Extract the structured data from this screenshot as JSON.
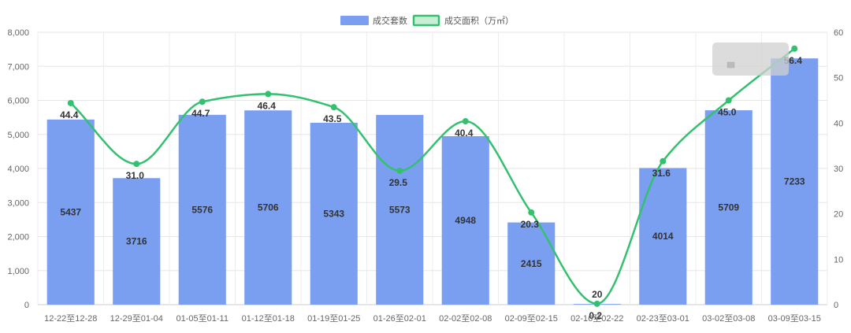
{
  "chart_data": {
    "type": "bar",
    "categories": [
      "12-22至12-28",
      "12-29至01-04",
      "01-05至01-11",
      "01-12至01-18",
      "01-19至01-25",
      "01-26至02-01",
      "02-02至02-08",
      "02-09至02-15",
      "02-16至02-22",
      "02-23至03-01",
      "03-02至03-08",
      "03-09至03-15"
    ],
    "series": [
      {
        "name": "成交套数",
        "type": "bar",
        "axis": "left",
        "color": "#7a9ff0",
        "values": [
          5437,
          3716,
          5576,
          5706,
          5343,
          5573,
          4948,
          2415,
          20,
          4014,
          5709,
          7233
        ],
        "labels": [
          "5437",
          "3716",
          "5576",
          "5706",
          "5343",
          "5573",
          "4948",
          "2415",
          "20",
          "4014",
          "5709",
          "7233"
        ]
      },
      {
        "name": "成交面积（万㎡）",
        "type": "line",
        "axis": "right",
        "color": "#33c16f",
        "values": [
          44.4,
          31.0,
          44.7,
          46.4,
          43.5,
          29.5,
          40.4,
          20.3,
          0.2,
          31.6,
          45.0,
          56.4
        ],
        "labels": [
          "44.4",
          "31.0",
          "44.7",
          "46.4",
          "43.5",
          "29.5",
          "40.4",
          "20.3",
          "0.2",
          "31.6",
          "45.0",
          "56.4"
        ]
      }
    ],
    "y_left": {
      "range": [
        0,
        8000
      ],
      "ticks": [
        "0",
        "1,000",
        "2,000",
        "3,000",
        "4,000",
        "5,000",
        "6,000",
        "7,000",
        "8,000"
      ]
    },
    "y_right": {
      "range": [
        0,
        60
      ],
      "ticks": [
        "0",
        "10",
        "20",
        "30",
        "40",
        "50",
        "60"
      ]
    },
    "grid": true,
    "legend_position": "top-center"
  }
}
